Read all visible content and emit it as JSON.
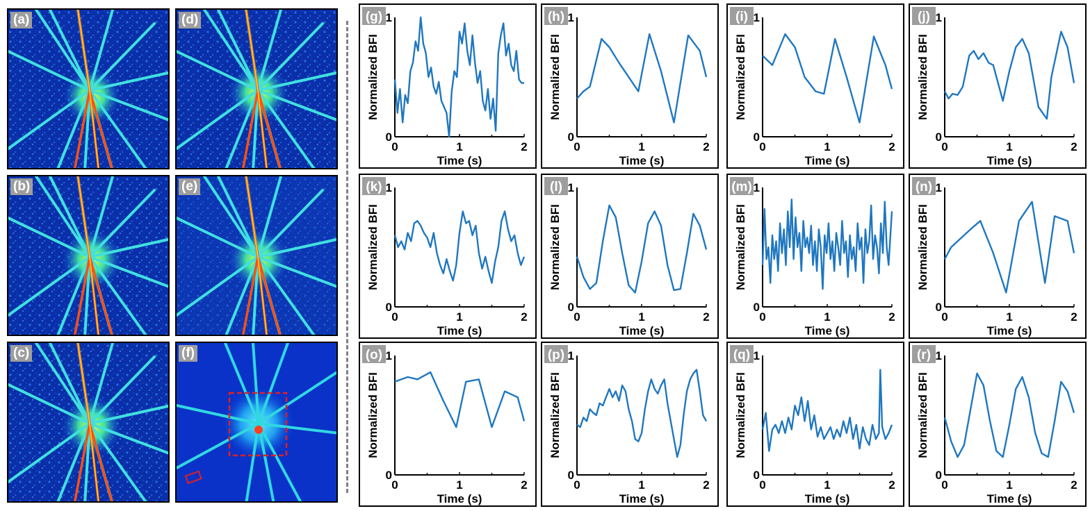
{
  "image_panels": [
    {
      "label": "(a)"
    },
    {
      "label": "(b)"
    },
    {
      "label": "(c)"
    },
    {
      "label": "(d)"
    },
    {
      "label": "(e)"
    },
    {
      "label": "(f)"
    }
  ],
  "chart_data": [
    {
      "type": "line",
      "panel": "(g)",
      "xlabel": "Time (s)",
      "ylabel": "Normalized BFI",
      "xlim": [
        0,
        2
      ],
      "ylim": [
        0,
        1
      ],
      "xticks": [
        "0",
        "1",
        "2"
      ],
      "yticks": [
        "0",
        "1"
      ],
      "series": [
        {
          "x": [
            0,
            0.04,
            0.08,
            0.12,
            0.16,
            0.2,
            0.24,
            0.28,
            0.32,
            0.36,
            0.4,
            0.44,
            0.48,
            0.52,
            0.56,
            0.6,
            0.64,
            0.68,
            0.72,
            0.76,
            0.8,
            0.84,
            0.88,
            0.92,
            0.96,
            1.0,
            1.04,
            1.08,
            1.12,
            1.16,
            1.2,
            1.24,
            1.28,
            1.32,
            1.36,
            1.4,
            1.44,
            1.48,
            1.52,
            1.56,
            1.6,
            1.64,
            1.68,
            1.72,
            1.76,
            1.8,
            1.84,
            1.88,
            1.92,
            1.96,
            2.0
          ],
          "y": [
            0.48,
            0.2,
            0.4,
            0.12,
            0.35,
            0.28,
            0.55,
            0.62,
            0.8,
            0.72,
            1.0,
            0.78,
            0.7,
            0.5,
            0.58,
            0.42,
            0.36,
            0.46,
            0.3,
            0.25,
            0.2,
            0.0,
            0.38,
            0.55,
            0.5,
            0.88,
            0.78,
            0.95,
            0.72,
            0.6,
            0.85,
            0.62,
            0.45,
            0.55,
            0.3,
            0.22,
            0.4,
            0.15,
            0.32,
            0.05,
            0.7,
            0.85,
            0.95,
            0.68,
            0.78,
            0.6,
            0.55,
            0.72,
            0.48,
            0.45,
            0.45
          ]
        }
      ]
    },
    {
      "type": "line",
      "panel": "(h)",
      "xlabel": "Time (s)",
      "ylabel": "Normalized BFI",
      "xlim": [
        0,
        2
      ],
      "ylim": [
        0,
        1
      ],
      "xticks": [
        "0",
        "1",
        "2"
      ],
      "yticks": [
        "0",
        "1"
      ],
      "series": [
        {
          "x": [
            0,
            0.1,
            0.2,
            0.38,
            0.5,
            0.65,
            0.95,
            1.12,
            1.3,
            1.5,
            1.72,
            1.9,
            2.0
          ],
          "y": [
            0.32,
            0.38,
            0.42,
            0.82,
            0.75,
            0.62,
            0.38,
            0.86,
            0.55,
            0.12,
            0.85,
            0.72,
            0.5
          ]
        }
      ]
    },
    {
      "type": "line",
      "panel": "(i)",
      "xlabel": "Time (s)",
      "ylabel": "Normalized BFI",
      "xlim": [
        0,
        2
      ],
      "ylim": [
        0,
        1
      ],
      "xticks": [
        "0",
        "1",
        "2"
      ],
      "yticks": [
        "0",
        "1"
      ],
      "series": [
        {
          "x": [
            0,
            0.15,
            0.35,
            0.5,
            0.65,
            0.82,
            0.95,
            1.12,
            1.3,
            1.5,
            1.72,
            1.9,
            2.0
          ],
          "y": [
            0.68,
            0.6,
            0.86,
            0.75,
            0.5,
            0.38,
            0.36,
            0.82,
            0.5,
            0.12,
            0.84,
            0.6,
            0.4
          ]
        }
      ]
    },
    {
      "type": "line",
      "panel": "(j)",
      "xlabel": "Time (s)",
      "ylabel": "Normalized BFI",
      "xlim": [
        0,
        2
      ],
      "ylim": [
        0,
        1
      ],
      "xticks": [
        "0",
        "1",
        "2"
      ],
      "yticks": [
        "0",
        "1"
      ],
      "series": [
        {
          "x": [
            0,
            0.06,
            0.12,
            0.2,
            0.28,
            0.38,
            0.45,
            0.52,
            0.6,
            0.68,
            0.75,
            0.9,
            1.0,
            1.1,
            1.2,
            1.3,
            1.45,
            1.58,
            1.65,
            1.8,
            1.9,
            2.0
          ],
          "y": [
            0.38,
            0.32,
            0.36,
            0.35,
            0.42,
            0.68,
            0.72,
            0.65,
            0.7,
            0.62,
            0.6,
            0.3,
            0.55,
            0.75,
            0.82,
            0.7,
            0.25,
            0.15,
            0.5,
            0.88,
            0.75,
            0.45
          ]
        }
      ]
    },
    {
      "type": "line",
      "panel": "(k)",
      "xlabel": "Time (s)",
      "ylabel": "Normalized BFI",
      "xlim": [
        0,
        2
      ],
      "ylim": [
        0,
        1
      ],
      "xticks": [
        "0",
        "1",
        "2"
      ],
      "yticks": [
        "0",
        "1"
      ],
      "series": [
        {
          "x": [
            0,
            0.05,
            0.1,
            0.15,
            0.2,
            0.25,
            0.3,
            0.35,
            0.4,
            0.45,
            0.5,
            0.55,
            0.6,
            0.65,
            0.7,
            0.75,
            0.8,
            0.85,
            0.9,
            0.95,
            1.0,
            1.05,
            1.1,
            1.15,
            1.2,
            1.25,
            1.3,
            1.35,
            1.4,
            1.45,
            1.5,
            1.55,
            1.6,
            1.65,
            1.7,
            1.75,
            1.8,
            1.85,
            1.9,
            1.95,
            2.0
          ],
          "y": [
            0.6,
            0.5,
            0.55,
            0.48,
            0.62,
            0.55,
            0.7,
            0.72,
            0.68,
            0.62,
            0.58,
            0.5,
            0.62,
            0.45,
            0.35,
            0.28,
            0.4,
            0.3,
            0.22,
            0.35,
            0.62,
            0.8,
            0.7,
            0.72,
            0.6,
            0.68,
            0.45,
            0.32,
            0.42,
            0.3,
            0.2,
            0.38,
            0.5,
            0.72,
            0.8,
            0.65,
            0.55,
            0.6,
            0.45,
            0.35,
            0.42
          ]
        }
      ]
    },
    {
      "type": "line",
      "panel": "(l)",
      "xlabel": "Time (s)",
      "ylabel": "Normalized BFI",
      "xlim": [
        0,
        2
      ],
      "ylim": [
        0,
        1
      ],
      "xticks": [
        "0",
        "1",
        "2"
      ],
      "yticks": [
        "0",
        "1"
      ],
      "series": [
        {
          "x": [
            0,
            0.1,
            0.2,
            0.3,
            0.4,
            0.5,
            0.6,
            0.7,
            0.8,
            0.9,
            1.0,
            1.1,
            1.2,
            1.3,
            1.4,
            1.5,
            1.6,
            1.7,
            1.8,
            1.9,
            2.0
          ],
          "y": [
            0.42,
            0.25,
            0.15,
            0.2,
            0.55,
            0.85,
            0.75,
            0.45,
            0.18,
            0.12,
            0.38,
            0.7,
            0.8,
            0.68,
            0.35,
            0.14,
            0.15,
            0.45,
            0.78,
            0.68,
            0.48
          ]
        }
      ]
    },
    {
      "type": "line",
      "panel": "(m)",
      "xlabel": "Time (s)",
      "ylabel": "Normalized BFI",
      "xlim": [
        0,
        2
      ],
      "ylim": [
        0,
        1
      ],
      "xticks": [
        "0",
        "1",
        "2"
      ],
      "yticks": [
        "0",
        "1"
      ],
      "series": [
        {
          "x": [
            0,
            0.03,
            0.06,
            0.09,
            0.12,
            0.15,
            0.18,
            0.21,
            0.24,
            0.27,
            0.3,
            0.33,
            0.36,
            0.39,
            0.42,
            0.45,
            0.48,
            0.51,
            0.54,
            0.57,
            0.6,
            0.63,
            0.66,
            0.69,
            0.72,
            0.75,
            0.78,
            0.81,
            0.84,
            0.87,
            0.9,
            0.93,
            0.96,
            0.99,
            1.02,
            1.05,
            1.08,
            1.11,
            1.14,
            1.17,
            1.2,
            1.23,
            1.26,
            1.29,
            1.32,
            1.35,
            1.38,
            1.41,
            1.44,
            1.47,
            1.5,
            1.53,
            1.56,
            1.59,
            1.62,
            1.65,
            1.68,
            1.71,
            1.74,
            1.77,
            1.8,
            1.83,
            1.86,
            1.89,
            1.92,
            1.95,
            1.98,
            2.0
          ],
          "y": [
            0.35,
            0.82,
            0.4,
            0.5,
            0.2,
            0.6,
            0.4,
            0.55,
            0.3,
            0.7,
            0.45,
            0.65,
            0.35,
            0.8,
            0.5,
            0.9,
            0.4,
            0.75,
            0.5,
            0.62,
            0.3,
            0.72,
            0.5,
            0.58,
            0.45,
            0.68,
            0.35,
            0.55,
            0.3,
            0.65,
            0.5,
            0.15,
            0.6,
            0.45,
            0.7,
            0.4,
            0.55,
            0.3,
            0.62,
            0.5,
            0.35,
            0.72,
            0.45,
            0.55,
            0.25,
            0.6,
            0.4,
            0.5,
            0.3,
            0.7,
            0.48,
            0.58,
            0.2,
            0.65,
            0.45,
            0.55,
            0.85,
            0.4,
            0.6,
            0.5,
            0.28,
            0.7,
            0.45,
            0.88,
            0.5,
            0.35,
            0.62,
            0.8
          ]
        }
      ]
    },
    {
      "type": "line",
      "panel": "(n)",
      "xlabel": "Time (s)",
      "ylabel": "Normalized BFI",
      "xlim": [
        0,
        2
      ],
      "ylim": [
        0,
        1
      ],
      "xticks": [
        "0",
        "1",
        "2"
      ],
      "yticks": [
        "0",
        "1"
      ],
      "series": [
        {
          "x": [
            0,
            0.1,
            0.2,
            0.4,
            0.55,
            0.75,
            0.95,
            1.15,
            1.35,
            1.55,
            1.7,
            1.9,
            2.0
          ],
          "y": [
            0.4,
            0.5,
            0.55,
            0.65,
            0.72,
            0.45,
            0.12,
            0.72,
            0.88,
            0.2,
            0.76,
            0.72,
            0.45
          ]
        }
      ]
    },
    {
      "type": "line",
      "panel": "(o)",
      "xlabel": "Time (s)",
      "ylabel": "Normalized BFI",
      "xlim": [
        0,
        2
      ],
      "ylim": [
        0,
        1
      ],
      "xticks": [
        "0",
        "1",
        "2"
      ],
      "yticks": [
        "0",
        "1"
      ],
      "series": [
        {
          "x": [
            0,
            0.1,
            0.2,
            0.35,
            0.55,
            0.75,
            0.95,
            1.1,
            1.3,
            1.5,
            1.7,
            1.9,
            2.0
          ],
          "y": [
            0.78,
            0.8,
            0.82,
            0.8,
            0.86,
            0.62,
            0.4,
            0.78,
            0.8,
            0.4,
            0.7,
            0.65,
            0.45
          ]
        }
      ]
    },
    {
      "type": "line",
      "panel": "(p)",
      "xlabel": "Time (s)",
      "ylabel": "Normalized BFI",
      "xlim": [
        0,
        2
      ],
      "ylim": [
        0,
        1
      ],
      "xticks": [
        "0",
        "1",
        "2"
      ],
      "yticks": [
        "0",
        "1"
      ],
      "series": [
        {
          "x": [
            0,
            0.05,
            0.1,
            0.15,
            0.2,
            0.25,
            0.3,
            0.35,
            0.4,
            0.45,
            0.5,
            0.55,
            0.6,
            0.65,
            0.7,
            0.75,
            0.8,
            0.85,
            0.9,
            0.95,
            1.0,
            1.05,
            1.1,
            1.15,
            1.2,
            1.25,
            1.3,
            1.35,
            1.4,
            1.45,
            1.5,
            1.55,
            1.6,
            1.65,
            1.7,
            1.75,
            1.8,
            1.85,
            1.9,
            1.95,
            2.0
          ],
          "y": [
            0.42,
            0.4,
            0.48,
            0.45,
            0.55,
            0.52,
            0.5,
            0.6,
            0.58,
            0.65,
            0.72,
            0.65,
            0.7,
            0.62,
            0.75,
            0.7,
            0.55,
            0.45,
            0.3,
            0.28,
            0.35,
            0.55,
            0.7,
            0.8,
            0.72,
            0.68,
            0.75,
            0.8,
            0.6,
            0.45,
            0.3,
            0.15,
            0.25,
            0.5,
            0.7,
            0.8,
            0.85,
            0.88,
            0.7,
            0.5,
            0.45
          ]
        }
      ]
    },
    {
      "type": "line",
      "panel": "(q)",
      "xlabel": "Time (s)",
      "ylabel": "Normalized BFI",
      "xlim": [
        0,
        2
      ],
      "ylim": [
        0,
        1
      ],
      "xticks": [
        "0",
        "1",
        "2"
      ],
      "yticks": [
        "0",
        "1"
      ],
      "series": [
        {
          "x": [
            0,
            0.05,
            0.1,
            0.15,
            0.2,
            0.25,
            0.3,
            0.35,
            0.4,
            0.45,
            0.5,
            0.55,
            0.6,
            0.65,
            0.7,
            0.75,
            0.8,
            0.85,
            0.9,
            0.95,
            1.0,
            1.05,
            1.1,
            1.15,
            1.2,
            1.25,
            1.3,
            1.35,
            1.4,
            1.45,
            1.5,
            1.55,
            1.6,
            1.65,
            1.7,
            1.75,
            1.8,
            1.82,
            1.85,
            1.9,
            1.95,
            2.0
          ],
          "y": [
            0.38,
            0.52,
            0.2,
            0.38,
            0.42,
            0.35,
            0.45,
            0.35,
            0.48,
            0.38,
            0.58,
            0.5,
            0.65,
            0.45,
            0.62,
            0.38,
            0.5,
            0.32,
            0.4,
            0.3,
            0.35,
            0.4,
            0.3,
            0.38,
            0.32,
            0.45,
            0.35,
            0.48,
            0.3,
            0.42,
            0.22,
            0.4,
            0.3,
            0.25,
            0.42,
            0.3,
            0.35,
            0.88,
            0.4,
            0.3,
            0.35,
            0.42
          ]
        }
      ]
    },
    {
      "type": "line",
      "panel": "(r)",
      "xlabel": "Time (s)",
      "ylabel": "Normalized BFI",
      "xlim": [
        0,
        2
      ],
      "ylim": [
        0,
        1
      ],
      "xticks": [
        "0",
        "1",
        "2"
      ],
      "yticks": [
        "0",
        "1"
      ],
      "series": [
        {
          "x": [
            0,
            0.1,
            0.2,
            0.3,
            0.4,
            0.5,
            0.6,
            0.7,
            0.8,
            0.9,
            1.0,
            1.1,
            1.2,
            1.3,
            1.4,
            1.5,
            1.6,
            1.7,
            1.8,
            1.9,
            2.0
          ],
          "y": [
            0.48,
            0.28,
            0.15,
            0.25,
            0.55,
            0.85,
            0.75,
            0.45,
            0.2,
            0.15,
            0.42,
            0.72,
            0.82,
            0.65,
            0.35,
            0.18,
            0.15,
            0.45,
            0.78,
            0.7,
            0.52
          ]
        }
      ]
    }
  ]
}
